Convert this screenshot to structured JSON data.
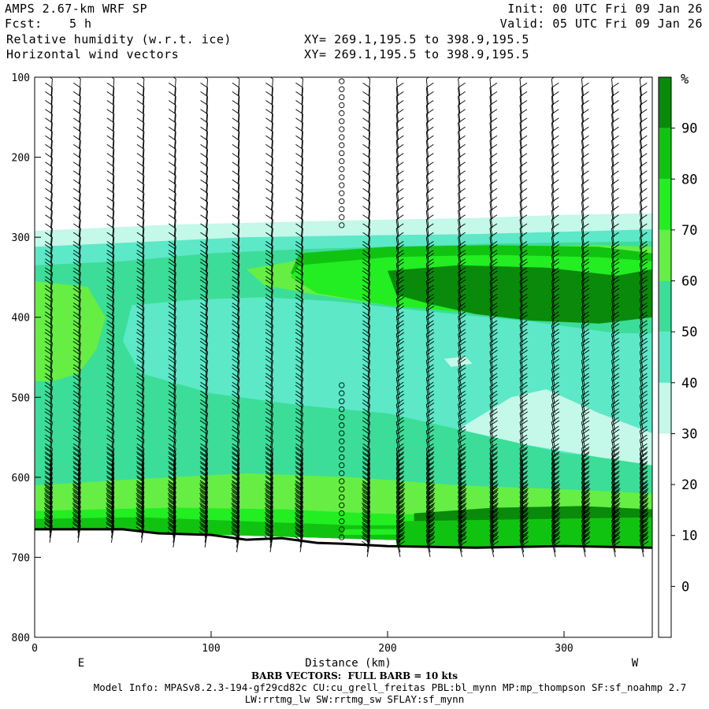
{
  "header": {
    "model": "AMPS 2.67-km WRF SP",
    "fcst_label": "Fcst:",
    "fcst_value": "5 h",
    "init": "Init: 00 UTC Fri 09 Jan 26",
    "valid": "Valid: 05 UTC Fri 09 Jan 26",
    "field1": "Relative humidity (w.r.t. ice)",
    "field2": "Horizontal wind vectors",
    "xy1": "XY= 269.1,195.5 to 398.9,195.5",
    "xy2": "XY= 269.1,195.5 to 398.9,195.5"
  },
  "footer": {
    "barb_note": "BARB VECTORS:  FULL BARB = 10 kts",
    "model_info": "Model Info: MPASv8.2.3-194-gf29cd82c CU:cu_grell_freitas PBL:bl_mynn MP:mp_thompson SF:sf_noahmp 2.7",
    "model_info2": "LW:rrtmg_lw SW:rrtmg_sw SFLAY:sf_mynn"
  },
  "chart_data": {
    "type": "heatmap",
    "xlabel": "Distance (km)",
    "ylabel": "",
    "x_range": [
      0,
      350
    ],
    "y_range_pressure": [
      100,
      800
    ],
    "x_ticks": [
      0,
      100,
      200,
      300
    ],
    "y_ticks": [
      100,
      200,
      300,
      400,
      500,
      600,
      700,
      800
    ],
    "x_end_labels": {
      "left": "E",
      "right": "W"
    },
    "colorbar": {
      "unit": "%",
      "levels": [
        0,
        10,
        20,
        30,
        40,
        50,
        60,
        70,
        80,
        90
      ],
      "bands": [
        {
          "from": -10,
          "to": 30,
          "color": "#ffffff"
        },
        {
          "from": 30,
          "to": 40,
          "color": "#c4f8e8"
        },
        {
          "from": 40,
          "to": 50,
          "color": "#5de8c8"
        },
        {
          "from": 50,
          "to": 60,
          "color": "#3cdd98"
        },
        {
          "from": 60,
          "to": 70,
          "color": "#66ee44"
        },
        {
          "from": 70,
          "to": 80,
          "color": "#22ee22"
        },
        {
          "from": 80,
          "to": 90,
          "color": "#11c311"
        },
        {
          "from": 90,
          "to": 100,
          "color": "#0a8a0a"
        }
      ]
    },
    "terrain_pressure": [
      [
        0,
        665
      ],
      [
        50,
        665
      ],
      [
        70,
        670
      ],
      [
        100,
        672
      ],
      [
        120,
        678
      ],
      [
        140,
        676
      ],
      [
        160,
        682
      ],
      [
        175,
        683
      ],
      [
        200,
        686
      ],
      [
        250,
        688
      ],
      [
        300,
        686
      ],
      [
        350,
        688
      ]
    ],
    "rh_regions": [
      {
        "rh": 35,
        "points": [
          [
            0,
            292
          ],
          [
            40,
            288
          ],
          [
            80,
            284
          ],
          [
            120,
            282
          ],
          [
            160,
            280
          ],
          [
            200,
            278
          ],
          [
            250,
            276
          ],
          [
            300,
            272
          ],
          [
            350,
            270
          ],
          [
            350,
            688
          ],
          [
            0,
            665
          ]
        ]
      },
      {
        "rh": 45,
        "points": [
          [
            0,
            312
          ],
          [
            60,
            306
          ],
          [
            120,
            300
          ],
          [
            175,
            298
          ],
          [
            250,
            296
          ],
          [
            320,
            292
          ],
          [
            350,
            290
          ],
          [
            350,
            688
          ],
          [
            0,
            665
          ]
        ]
      },
      {
        "rh": 55,
        "points": [
          [
            0,
            335
          ],
          [
            50,
            330
          ],
          [
            100,
            320
          ],
          [
            150,
            315
          ],
          [
            200,
            312
          ],
          [
            260,
            308
          ],
          [
            350,
            305
          ],
          [
            350,
            688
          ],
          [
            0,
            665
          ]
        ]
      },
      {
        "rh": 65,
        "points": [
          [
            120,
            340
          ],
          [
            160,
            325
          ],
          [
            200,
            318
          ],
          [
            260,
            312
          ],
          [
            320,
            310
          ],
          [
            350,
            312
          ],
          [
            350,
            400
          ],
          [
            300,
            398
          ],
          [
            250,
            390
          ],
          [
            200,
            385
          ],
          [
            160,
            372
          ],
          [
            130,
            360
          ]
        ]
      },
      {
        "rh": 65,
        "points": [
          [
            0,
            355
          ],
          [
            30,
            362
          ],
          [
            40,
            400
          ],
          [
            35,
            440
          ],
          [
            25,
            470
          ],
          [
            10,
            480
          ],
          [
            0,
            480
          ]
        ]
      },
      {
        "rh": 45,
        "points": [
          [
            55,
            385
          ],
          [
            90,
            378
          ],
          [
            130,
            375
          ],
          [
            170,
            380
          ],
          [
            220,
            392
          ],
          [
            280,
            405
          ],
          [
            330,
            420
          ],
          [
            350,
            420
          ],
          [
            350,
            580
          ],
          [
            300,
            570
          ],
          [
            250,
            545
          ],
          [
            200,
            520
          ],
          [
            150,
            510
          ],
          [
            100,
            495
          ],
          [
            60,
            470
          ],
          [
            50,
            430
          ]
        ]
      },
      {
        "rh": 35,
        "points": [
          [
            240,
            540
          ],
          [
            270,
            500
          ],
          [
            290,
            490
          ],
          [
            320,
            520
          ],
          [
            350,
            545
          ],
          [
            350,
            585
          ],
          [
            320,
            575
          ],
          [
            280,
            560
          ]
        ]
      },
      {
        "rh": 35,
        "points": [
          [
            232,
            452
          ],
          [
            244,
            449
          ],
          [
            248,
            458
          ],
          [
            236,
            462
          ]
        ]
      },
      {
        "rh": 55,
        "points": [
          [
            0,
            560
          ],
          [
            60,
            545
          ],
          [
            120,
            540
          ],
          [
            180,
            548
          ],
          [
            240,
            562
          ],
          [
            300,
            575
          ],
          [
            350,
            590
          ],
          [
            350,
            688
          ],
          [
            0,
            665
          ]
        ]
      },
      {
        "rh": 65,
        "points": [
          [
            0,
            610
          ],
          [
            60,
            602
          ],
          [
            120,
            595
          ],
          [
            180,
            600
          ],
          [
            240,
            610
          ],
          [
            300,
            615
          ],
          [
            350,
            620
          ],
          [
            350,
            688
          ],
          [
            0,
            665
          ]
        ]
      },
      {
        "rh": 75,
        "points": [
          [
            0,
            642
          ],
          [
            80,
            638
          ],
          [
            140,
            640
          ],
          [
            190,
            645
          ],
          [
            250,
            648
          ],
          [
            300,
            648
          ],
          [
            350,
            648
          ],
          [
            350,
            688
          ],
          [
            0,
            665
          ]
        ]
      },
      {
        "rh": 85,
        "points": [
          [
            0,
            652
          ],
          [
            60,
            650
          ],
          [
            120,
            655
          ],
          [
            180,
            660
          ],
          [
            200,
            660
          ],
          [
            350,
            660
          ],
          [
            350,
            688
          ],
          [
            0,
            665
          ]
        ]
      },
      {
        "rh": 75,
        "points": [
          [
            175,
            665
          ],
          [
            350,
            663
          ],
          [
            350,
            670
          ],
          [
            175,
            672
          ]
        ]
      },
      {
        "rh": 85,
        "points": [
          [
            150,
            320
          ],
          [
            200,
            312
          ],
          [
            260,
            310
          ],
          [
            320,
            312
          ],
          [
            350,
            320
          ],
          [
            350,
            395
          ],
          [
            300,
            392
          ],
          [
            250,
            388
          ],
          [
            200,
            380
          ],
          [
            160,
            366
          ],
          [
            145,
            345
          ]
        ]
      },
      {
        "rh": 75,
        "points": [
          [
            150,
            335
          ],
          [
            200,
            325
          ],
          [
            260,
            322
          ],
          [
            320,
            325
          ],
          [
            350,
            330
          ],
          [
            350,
            400
          ],
          [
            300,
            402
          ],
          [
            250,
            395
          ],
          [
            200,
            385
          ],
          [
            160,
            370
          ],
          [
            145,
            350
          ]
        ]
      },
      {
        "rh": 95,
        "points": [
          [
            200,
            342
          ],
          [
            240,
            335
          ],
          [
            290,
            338
          ],
          [
            330,
            348
          ],
          [
            350,
            340
          ],
          [
            350,
            400
          ],
          [
            320,
            408
          ],
          [
            280,
            404
          ],
          [
            250,
            396
          ],
          [
            225,
            384
          ],
          [
            205,
            372
          ]
        ]
      },
      {
        "rh": 95,
        "points": [
          [
            215,
            645
          ],
          [
            260,
            638
          ],
          [
            310,
            636
          ],
          [
            350,
            640
          ],
          [
            350,
            688
          ],
          [
            215,
            688
          ]
        ]
      },
      {
        "rh": 85,
        "points": [
          [
            205,
            655
          ],
          [
            350,
            650
          ],
          [
            350,
            688
          ],
          [
            205,
            688
          ]
        ]
      }
    ],
    "wind_columns_km": [
      10,
      26,
      45,
      62,
      80,
      98,
      116,
      135,
      152,
      174,
      190,
      205,
      222,
      240,
      258,
      275,
      293,
      310,
      327,
      343
    ],
    "calm_column_km": 174,
    "barb_note": "FULL BARB = 10 kts"
  }
}
